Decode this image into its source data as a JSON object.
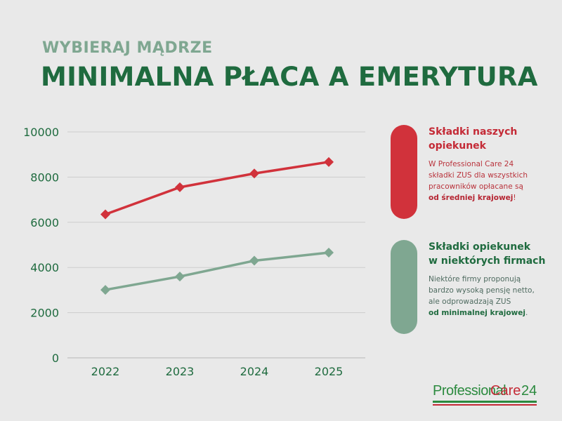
{
  "header": {
    "supertitle": "WYBIERAJ MĄDRZE",
    "title": "MINIMALNA PŁACA A EMERYTURA"
  },
  "chart_data": {
    "type": "line",
    "x": [
      "2022",
      "2023",
      "2024",
      "2025"
    ],
    "ylim": [
      0,
      10000
    ],
    "yticks": [
      "0",
      "2000",
      "4000",
      "6000",
      "8000",
      "10000"
    ],
    "grid": true,
    "series": [
      {
        "values": [
          6350,
          7550,
          8160,
          8670
        ],
        "color": "#d1323b",
        "marker": "diamond"
      },
      {
        "values": [
          3010,
          3600,
          4300,
          4660
        ],
        "color": "#7fa791",
        "marker": "diamond"
      }
    ]
  },
  "cards": {
    "red": {
      "title_line1": "Składki naszych",
      "title_line2": "opiekunek",
      "text_line1": "W Professional Care 24",
      "text_line2": "składki ZUS dla wszystkich",
      "text_line3": "pracowników opłacane są",
      "text_bold": "od średniej krajowej",
      "text_end": "!",
      "color": "#d1323b"
    },
    "green": {
      "title_line1": "Składki opiekunek",
      "title_line2": "w niektórych firmach",
      "text_line1": "Niektóre firmy proponują",
      "text_line2": "bardzo wysoką pensję netto,",
      "text_line3": "ale odprowadzają ZUS",
      "text_bold": "od minimalnej krajowej",
      "text_end": ".",
      "color": "#7fa791"
    }
  },
  "logo": {
    "part1": "Professional",
    "part2": "Care",
    "part3": "24"
  }
}
